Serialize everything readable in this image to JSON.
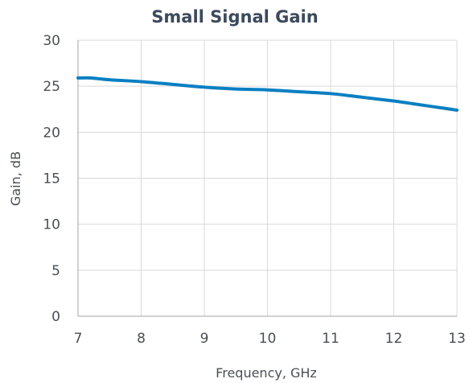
{
  "chart_data": {
    "type": "line",
    "title": "Small Signal Gain",
    "xlabel": "Frequency, GHz",
    "ylabel": "Gain, dB",
    "xlim": [
      7,
      13
    ],
    "ylim": [
      0,
      30
    ],
    "x_ticks": [
      7,
      8,
      9,
      10,
      11,
      12,
      13
    ],
    "y_ticks": [
      0,
      5,
      10,
      15,
      20,
      25,
      30
    ],
    "grid": true,
    "legend": "none",
    "series": [
      {
        "color": "#0a7fc2",
        "x": [
          7.0,
          7.2,
          7.5,
          8.0,
          8.5,
          9.0,
          9.5,
          10.0,
          10.5,
          11.0,
          11.5,
          12.0,
          12.3,
          12.6,
          13.0
        ],
        "y": [
          25.9,
          25.9,
          25.7,
          25.5,
          25.2,
          24.9,
          24.7,
          24.6,
          24.4,
          24.2,
          23.8,
          23.4,
          23.1,
          22.8,
          22.4
        ]
      }
    ]
  }
}
